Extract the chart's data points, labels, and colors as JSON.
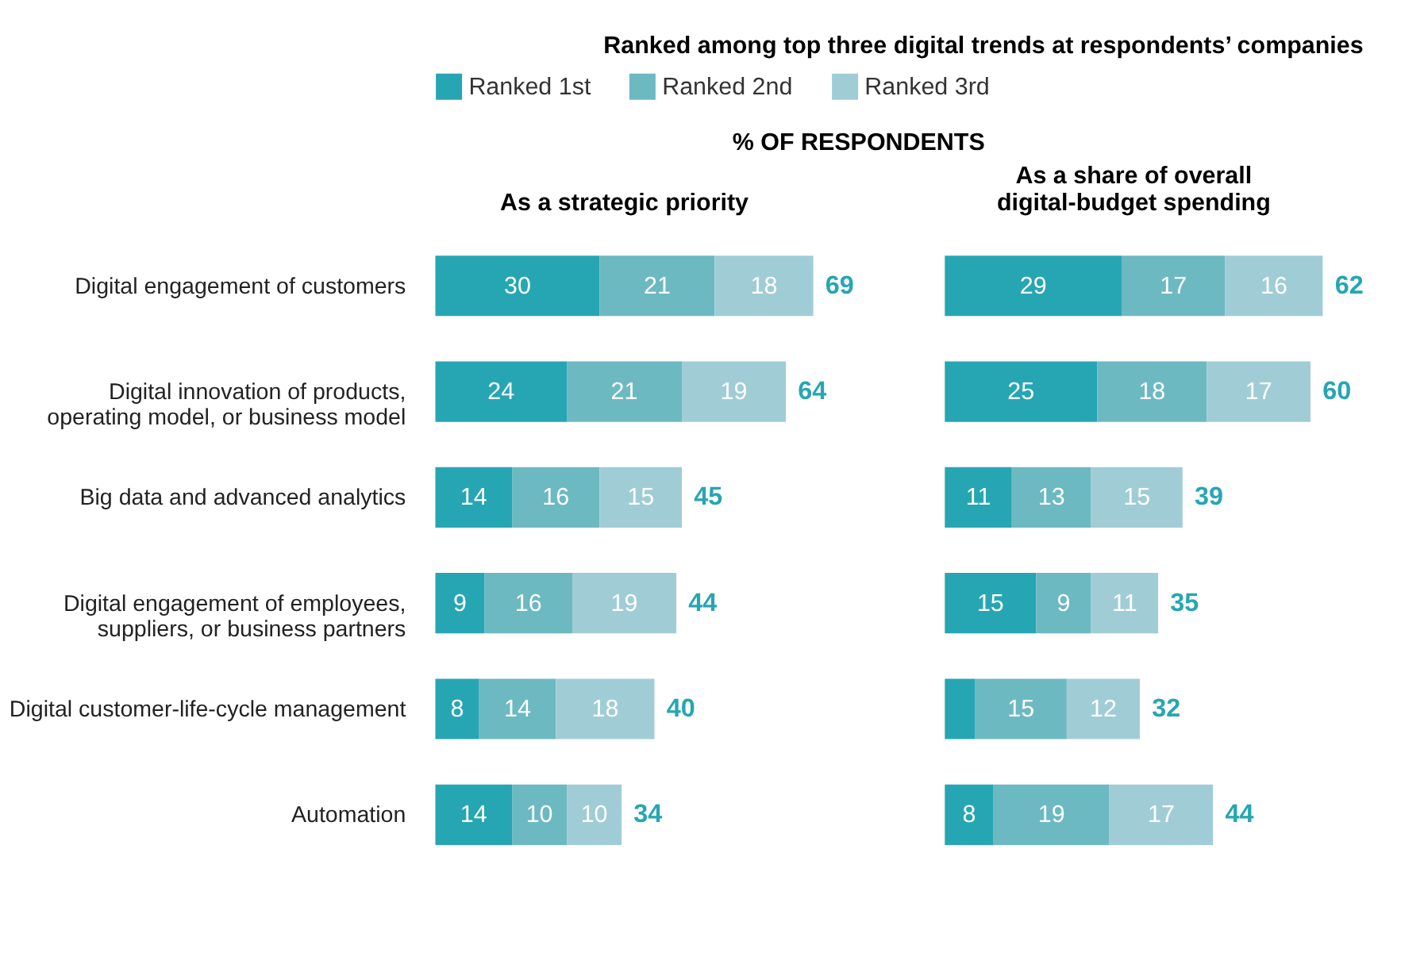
{
  "chart_data": [
    {
      "type": "bar",
      "orientation": "horizontal",
      "stacked": true,
      "title": "Ranked among top three digital trends at respondents’ companies",
      "subtitle": "As a strategic priority",
      "annotations": [
        "% OF RESPONDENTS"
      ],
      "legend": "top",
      "tick_labels": "y",
      "categories": [
        "Digital engagement of customers",
        "Digital innovation of products, operating model, or business model",
        "Big data and advanced analytics",
        "Digital engagement of employees, suppliers, or business partners",
        "Digital customer-life-cycle management",
        "Automation"
      ],
      "series": [
        {
          "name": "Ranked 1st",
          "color": "#26a6b3",
          "values": [
            30,
            24,
            14,
            9,
            8,
            14
          ],
          "value_labels": [
            "30",
            "24",
            "14",
            "9",
            "8",
            "14"
          ]
        },
        {
          "name": "Ranked 2nd",
          "color": "#6cb9c2",
          "values": [
            21,
            21,
            16,
            16,
            14,
            10
          ],
          "value_labels": [
            "21",
            "21",
            "16",
            "16",
            "14",
            "10"
          ]
        },
        {
          "name": "Ranked 3rd",
          "color": "#a0cdd5",
          "values": [
            18,
            19,
            15,
            19,
            18,
            10
          ],
          "value_labels": [
            "18",
            "19",
            "15",
            "19",
            "18",
            "10"
          ]
        }
      ],
      "totals": [
        "69",
        "64",
        "45",
        "44",
        "40",
        "34"
      ]
    },
    {
      "type": "bar",
      "orientation": "horizontal",
      "stacked": true,
      "subtitle": "As a share of overall digital-budget spending",
      "legend": "top",
      "tick_labels": false,
      "categories": [
        "Digital engagement of customers",
        "Digital innovation of products, operating model, or business model",
        "Big data and advanced analytics",
        "Digital engagement of employees, suppliers, or business partners",
        "Digital customer-life-cycle management",
        "Automation"
      ],
      "series": [
        {
          "name": "Ranked 1st",
          "color": "#26a6b3",
          "values": [
            29,
            25,
            11,
            15,
            5,
            8
          ],
          "value_labels": [
            "29",
            "25",
            "11",
            "15",
            null,
            "8"
          ]
        },
        {
          "name": "Ranked 2nd",
          "color": "#6cb9c2",
          "values": [
            17,
            18,
            13,
            9,
            15,
            19
          ],
          "value_labels": [
            "17",
            "18",
            "13",
            "9",
            "15",
            "19"
          ]
        },
        {
          "name": "Ranked 3rd",
          "color": "#a0cdd5",
          "values": [
            16,
            17,
            15,
            11,
            12,
            17
          ],
          "value_labels": [
            "16",
            "17",
            "15",
            "11",
            "12",
            "17"
          ]
        }
      ],
      "totals": [
        "62",
        "60",
        "39",
        "35",
        "32",
        "44"
      ]
    }
  ]
}
